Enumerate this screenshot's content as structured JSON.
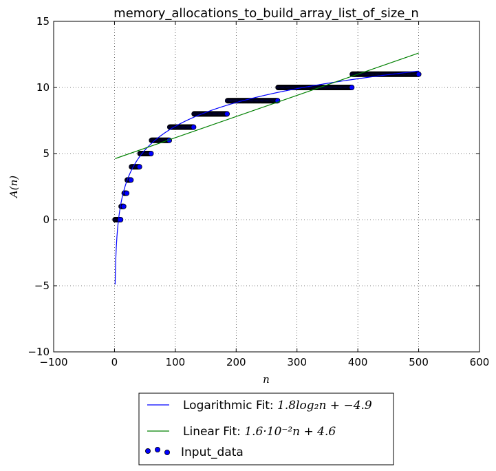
{
  "chart_data": {
    "type": "scatter",
    "title": "memory_allocations_to_build_array_list_of_size_n",
    "xlabel": "n",
    "ylabel": "A(n)",
    "xlim": [
      -100,
      600
    ],
    "ylim": [
      -10,
      15
    ],
    "xticks": [
      -100,
      0,
      100,
      200,
      300,
      400,
      500,
      600
    ],
    "yticks": [
      -10,
      -5,
      0,
      5,
      10,
      15
    ],
    "xtick_labels": [
      "−100",
      "0",
      "100",
      "200",
      "300",
      "400",
      "500",
      "600"
    ],
    "ytick_labels": [
      "−10",
      "−5",
      "0",
      "5",
      "10",
      "15"
    ],
    "grid": true,
    "legend_placement": "below-center",
    "steps": [
      {
        "value": 0,
        "from": 1,
        "to": 10
      },
      {
        "value": 1,
        "from": 11,
        "to": 15
      },
      {
        "value": 2,
        "from": 16,
        "to": 20
      },
      {
        "value": 3,
        "from": 21,
        "to": 27
      },
      {
        "value": 4,
        "from": 28,
        "to": 41
      },
      {
        "value": 5,
        "from": 42,
        "to": 60
      },
      {
        "value": 6,
        "from": 61,
        "to": 90
      },
      {
        "value": 7,
        "from": 91,
        "to": 130
      },
      {
        "value": 8,
        "from": 131,
        "to": 185
      },
      {
        "value": 9,
        "from": 186,
        "to": 268
      },
      {
        "value": 10,
        "from": 269,
        "to": 390
      },
      {
        "value": 11,
        "from": 391,
        "to": 500
      }
    ],
    "series": [
      {
        "name": "Logarithmic Fit",
        "formula": "1.8log₂n + −4.9",
        "kind": "line",
        "color": "#0000ff",
        "a": 1.8,
        "b": -4.9,
        "x_range": [
          1,
          500
        ]
      },
      {
        "name": "Linear Fit",
        "formula": "1.6·10⁻²n + 4.6",
        "kind": "line",
        "color": "#008000",
        "slope": 0.016,
        "intercept": 4.6,
        "x_range": [
          1,
          500
        ]
      },
      {
        "name": "Input_data",
        "kind": "scatter",
        "color": "#0000ff",
        "edge_color": "#000000"
      }
    ]
  }
}
